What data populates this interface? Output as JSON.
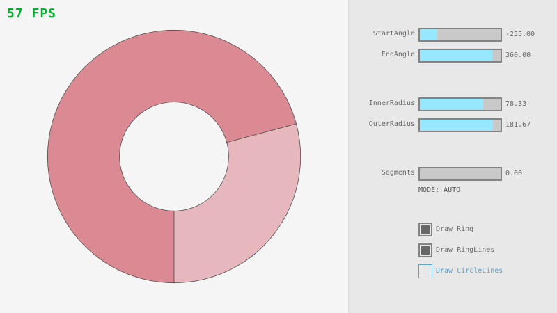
{
  "fps": {
    "text": "57 FPS",
    "color": "#00b22d"
  },
  "ring": {
    "start_angle": -255,
    "end_angle": 360,
    "inner_radius": 78.33,
    "outer_radius": 181.67,
    "colors": {
      "main": "#db8a93",
      "secondary": "#e6b7bc",
      "lines": "#505050"
    }
  },
  "controls": {
    "sliders": [
      {
        "label": "StartAngle",
        "value": "-255.00",
        "min": -450,
        "max": 450,
        "num": -255
      },
      {
        "label": "EndAngle",
        "value": "360.00",
        "min": -450,
        "max": 450,
        "num": 360
      },
      {
        "label": "InnerRadius",
        "value": "78.33",
        "min": 0,
        "max": 100,
        "num": 78.33
      },
      {
        "label": "OuterRadius",
        "value": "181.67",
        "min": 0,
        "max": 200,
        "num": 181.67
      },
      {
        "label": "Segments",
        "value": "0.00",
        "min": 0,
        "max": 100,
        "num": 0
      }
    ],
    "mode": "MODE: AUTO",
    "checkboxes": [
      {
        "label": "Draw Ring",
        "checked": true
      },
      {
        "label": "Draw RingLines",
        "checked": true
      },
      {
        "label": "Draw CircleLines",
        "checked": false,
        "focused": true,
        "focus_color": "#5aa4d0"
      }
    ]
  }
}
